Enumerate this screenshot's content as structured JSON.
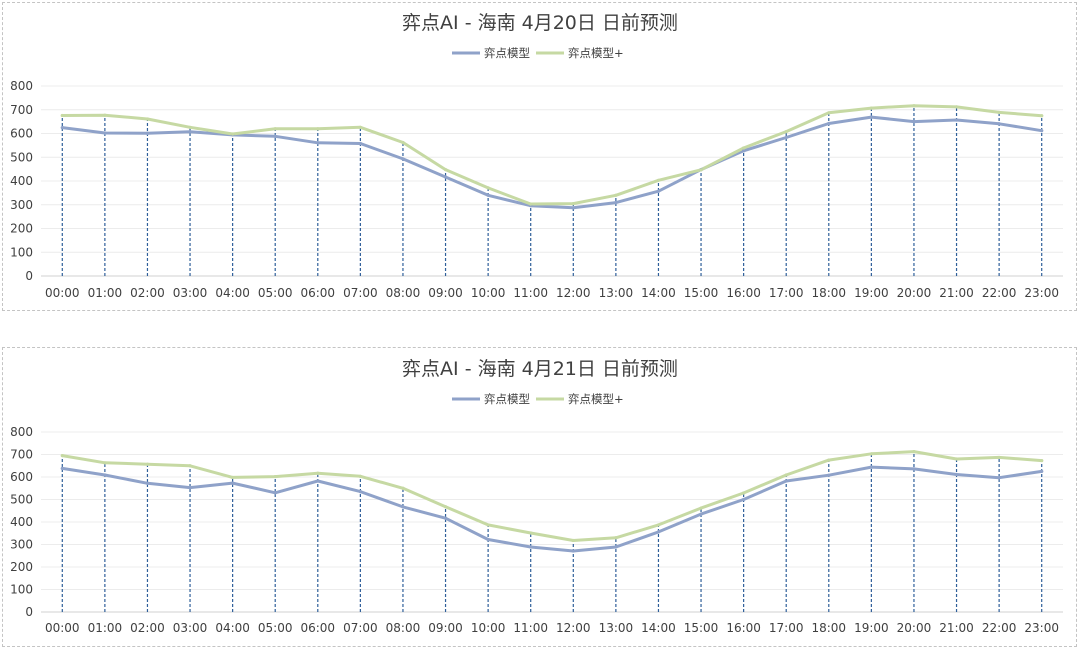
{
  "chart_data": [
    {
      "type": "line",
      "title": "弈点AI - 海南 4月20日 日前预测",
      "categories": [
        "00:00",
        "01:00",
        "02:00",
        "03:00",
        "04:00",
        "05:00",
        "06:00",
        "07:00",
        "08:00",
        "09:00",
        "10:00",
        "11:00",
        "12:00",
        "13:00",
        "14:00",
        "15:00",
        "16:00",
        "17:00",
        "18:00",
        "19:00",
        "20:00",
        "21:00",
        "22:00",
        "23:00"
      ],
      "ylim": [
        0,
        800
      ],
      "yticks": [
        0,
        100,
        200,
        300,
        400,
        500,
        600,
        700,
        800
      ],
      "grid": true,
      "legend_position": "top-center",
      "series": [
        {
          "name": "弈点模型",
          "color": "#8fa2c9",
          "values": [
            625,
            602,
            601,
            607,
            594,
            588,
            561,
            558,
            493,
            417,
            340,
            296,
            287,
            309,
            357,
            448,
            527,
            583,
            642,
            669,
            650,
            657,
            641,
            612
          ]
        },
        {
          "name": "弈点模型+",
          "color": "#c6d9a3",
          "values": [
            676,
            677,
            661,
            626,
            598,
            620,
            620,
            626,
            562,
            448,
            371,
            303,
            305,
            340,
            403,
            447,
            539,
            608,
            687,
            707,
            717,
            712,
            689,
            675
          ]
        }
      ]
    },
    {
      "type": "line",
      "title": "弈点AI - 海南 4月21日 日前预测",
      "categories": [
        "00:00",
        "01:00",
        "02:00",
        "03:00",
        "04:00",
        "05:00",
        "06:00",
        "07:00",
        "08:00",
        "09:00",
        "10:00",
        "11:00",
        "12:00",
        "13:00",
        "14:00",
        "15:00",
        "16:00",
        "17:00",
        "18:00",
        "19:00",
        "20:00",
        "21:00",
        "22:00",
        "23:00"
      ],
      "ylim": [
        0,
        800
      ],
      "yticks": [
        0,
        100,
        200,
        300,
        400,
        500,
        600,
        700,
        800
      ],
      "grid": true,
      "legend_position": "top-center",
      "series": [
        {
          "name": "弈点模型",
          "color": "#8fa2c9",
          "values": [
            638,
            609,
            572,
            553,
            573,
            530,
            582,
            535,
            467,
            417,
            322,
            289,
            271,
            289,
            356,
            435,
            500,
            582,
            608,
            644,
            636,
            611,
            597,
            625
          ]
        },
        {
          "name": "弈点模型+",
          "color": "#c6d9a3",
          "values": [
            695,
            663,
            657,
            650,
            598,
            602,
            617,
            603,
            550,
            468,
            387,
            351,
            318,
            330,
            387,
            462,
            529,
            609,
            675,
            703,
            713,
            680,
            687,
            673
          ]
        }
      ]
    }
  ]
}
